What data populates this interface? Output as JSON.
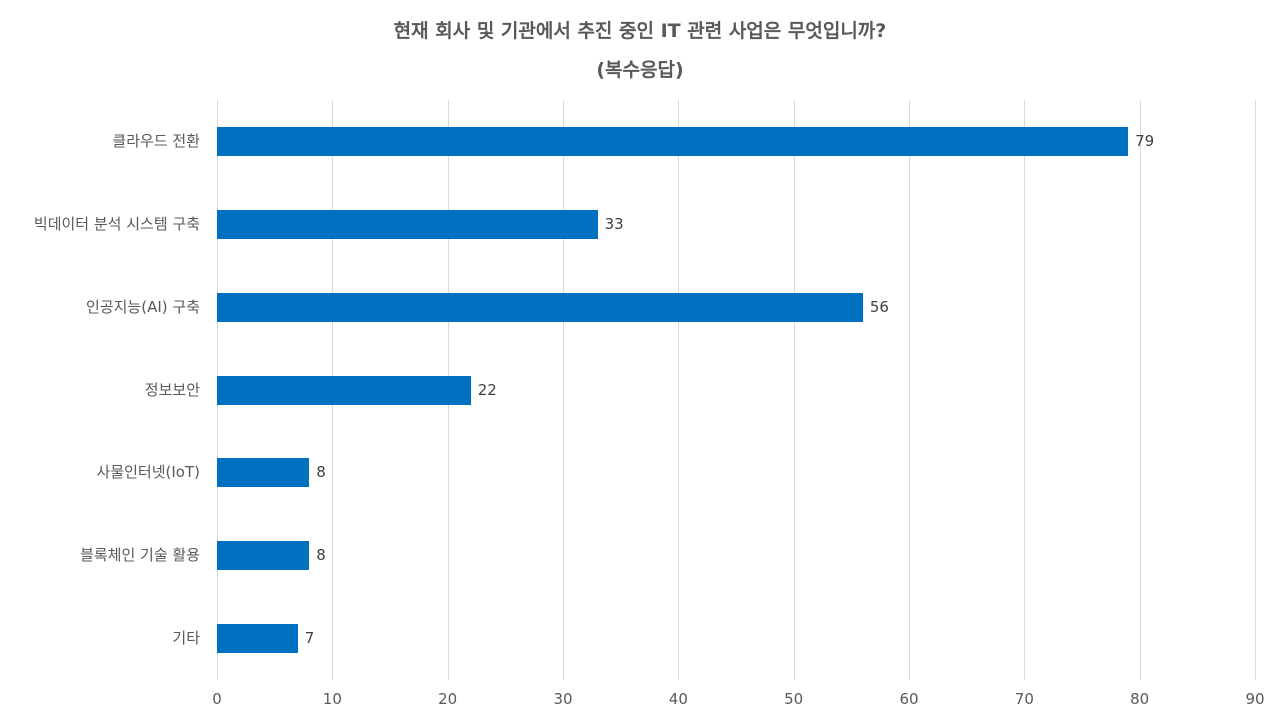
{
  "chart_data": {
    "type": "bar",
    "orientation": "horizontal",
    "title": "현재 회사 및 기관에서 추진 중인 IT 관련 사업은 무엇입니까?",
    "subtitle": "(복수응답)",
    "xlabel": "",
    "ylabel": "",
    "xlim": [
      0,
      90
    ],
    "x_ticks": [
      "0",
      "10",
      "20",
      "30",
      "40",
      "50",
      "60",
      "70",
      "80",
      "90"
    ],
    "grid": true,
    "legend": null,
    "bar_color": "#0070c0",
    "categories": [
      "클라우드 전환",
      "빅데이터 분석 시스템 구축",
      "인공지능(AI) 구축",
      "정보보안",
      "사물인터넷(IoT)",
      "블록체인 기술 활용",
      "기타"
    ],
    "values": [
      79,
      33,
      56,
      22,
      8,
      8,
      7
    ],
    "value_labels": [
      "79",
      "33",
      "56",
      "22",
      "8",
      "8",
      "7"
    ]
  }
}
